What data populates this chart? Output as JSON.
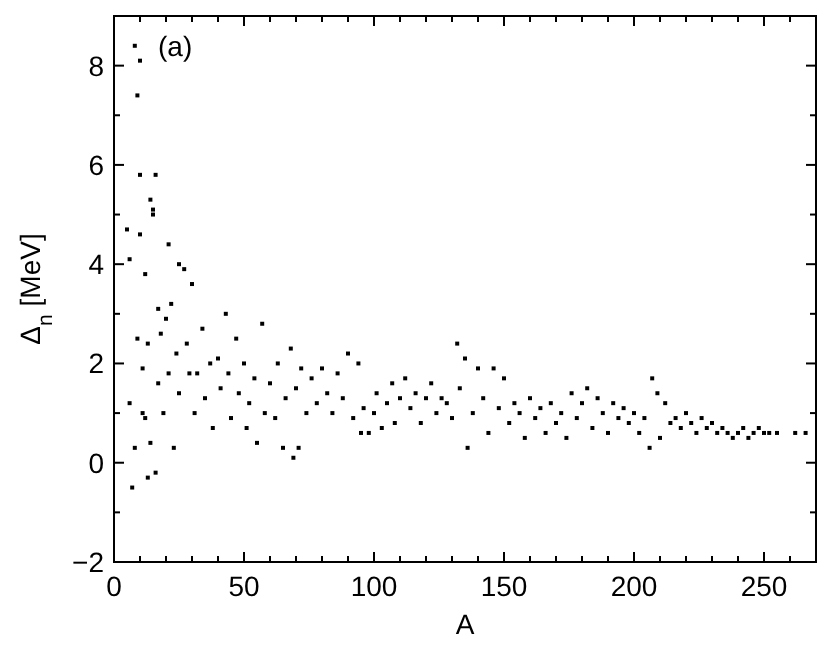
{
  "chart_data": {
    "type": "scatter",
    "xlabel": "A",
    "ylabel": "Δ$_{n}$ [MeV]",
    "annotations": [
      "(a)"
    ],
    "marker": "square",
    "grid": false,
    "xlim": [
      0,
      270
    ],
    "xticks": [
      0,
      {
        "value": 10,
        "label": null
      },
      {
        "value": 20,
        "label": null
      },
      {
        "value": 30,
        "label": null
      },
      {
        "value": 40,
        "label": null
      },
      50,
      {
        "value": 60,
        "label": null
      },
      {
        "value": 70,
        "label": null
      },
      {
        "value": 80,
        "label": null
      },
      {
        "value": 90,
        "label": null
      },
      100,
      {
        "value": 110,
        "label": null
      },
      {
        "value": 120,
        "label": null
      },
      {
        "value": 130,
        "label": null
      },
      {
        "value": 140,
        "label": null
      },
      150,
      {
        "value": 160,
        "label": null
      },
      {
        "value": 170,
        "label": null
      },
      {
        "value": 180,
        "label": null
      },
      {
        "value": 190,
        "label": null
      },
      200,
      {
        "value": 210,
        "label": null
      },
      {
        "value": 220,
        "label": null
      },
      {
        "value": 230,
        "label": null
      },
      {
        "value": 240,
        "label": null
      },
      250,
      {
        "value": 260,
        "label": null
      }
    ],
    "ylim": [
      -2,
      9
    ],
    "yticks": [
      -2,
      {
        "value": -1,
        "label": null
      },
      0,
      {
        "value": 1,
        "label": null
      },
      2,
      {
        "value": 3,
        "label": null
      },
      4,
      {
        "value": 5,
        "label": null
      },
      6,
      {
        "value": 7,
        "label": null
      },
      8
    ],
    "series": [
      {
        "color": "#000000",
        "x": [
          5,
          6,
          6,
          7,
          8,
          8,
          9,
          9,
          10,
          10,
          10,
          11,
          11,
          12,
          12,
          13,
          13,
          14,
          14,
          15,
          15,
          16,
          16,
          17,
          17,
          18,
          19,
          20,
          21,
          21,
          22,
          23,
          24,
          25,
          25,
          27,
          28,
          29,
          30,
          31,
          32,
          34,
          35,
          37,
          38,
          40,
          41,
          43,
          44,
          45,
          47,
          48,
          50,
          51,
          52,
          54,
          55,
          57,
          58,
          60,
          62,
          63,
          65,
          66,
          68,
          69,
          70,
          71,
          72,
          74,
          76,
          78,
          80,
          82,
          84,
          86,
          88,
          90,
          92,
          94,
          95,
          96,
          98,
          100,
          101,
          103,
          105,
          107,
          108,
          110,
          112,
          114,
          116,
          118,
          120,
          122,
          124,
          126,
          128,
          130,
          132,
          133,
          135,
          136,
          138,
          140,
          142,
          144,
          146,
          148,
          150,
          152,
          154,
          156,
          158,
          160,
          162,
          164,
          166,
          168,
          170,
          172,
          174,
          176,
          178,
          180,
          182,
          184,
          186,
          188,
          190,
          192,
          194,
          196,
          198,
          200,
          202,
          204,
          206,
          207,
          209,
          210,
          212,
          214,
          216,
          218,
          220,
          222,
          224,
          226,
          228,
          230,
          232,
          234,
          236,
          238,
          240,
          242,
          244,
          246,
          248,
          250,
          252,
          255,
          262,
          266
        ],
        "values": [
          4.7,
          1.2,
          4.1,
          -0.5,
          8.4,
          0.3,
          7.4,
          2.5,
          8.1,
          5.8,
          4.6,
          1.9,
          1.0,
          3.8,
          0.9,
          -0.3,
          2.4,
          5.3,
          0.4,
          5.0,
          5.1,
          -0.2,
          5.8,
          3.1,
          1.6,
          2.6,
          1.0,
          2.9,
          4.4,
          1.8,
          3.2,
          0.3,
          2.2,
          4.0,
          1.4,
          3.9,
          2.4,
          1.8,
          3.6,
          1.0,
          1.8,
          2.7,
          1.3,
          2.0,
          0.7,
          2.1,
          1.5,
          3.0,
          1.8,
          0.9,
          2.5,
          1.4,
          2.0,
          0.7,
          1.2,
          1.7,
          0.4,
          2.8,
          1.0,
          1.6,
          0.9,
          2.0,
          0.3,
          1.3,
          2.3,
          0.1,
          1.5,
          0.3,
          1.9,
          1.0,
          1.7,
          1.2,
          1.9,
          1.4,
          1.0,
          1.8,
          1.3,
          2.2,
          0.9,
          2.0,
          0.6,
          1.1,
          0.6,
          1.0,
          1.4,
          0.7,
          1.2,
          1.6,
          0.8,
          1.3,
          1.7,
          1.1,
          1.4,
          0.8,
          1.3,
          1.6,
          1.0,
          1.3,
          1.2,
          0.9,
          2.4,
          1.5,
          2.1,
          0.3,
          1.0,
          1.9,
          1.3,
          0.6,
          1.9,
          1.1,
          1.7,
          0.8,
          1.2,
          1.0,
          0.5,
          1.3,
          0.9,
          1.1,
          0.6,
          1.2,
          0.8,
          1.0,
          0.5,
          1.4,
          0.9,
          1.2,
          1.5,
          0.7,
          1.3,
          1.0,
          0.6,
          1.2,
          0.9,
          1.1,
          0.8,
          1.0,
          0.6,
          0.9,
          0.3,
          1.7,
          1.4,
          0.5,
          1.2,
          0.8,
          0.9,
          0.7,
          1.0,
          0.8,
          0.6,
          0.9,
          0.7,
          0.8,
          0.6,
          0.7,
          0.6,
          0.5,
          0.6,
          0.7,
          0.5,
          0.6,
          0.7,
          0.6,
          0.6,
          0.6,
          0.6,
          0.6
        ]
      }
    ]
  }
}
